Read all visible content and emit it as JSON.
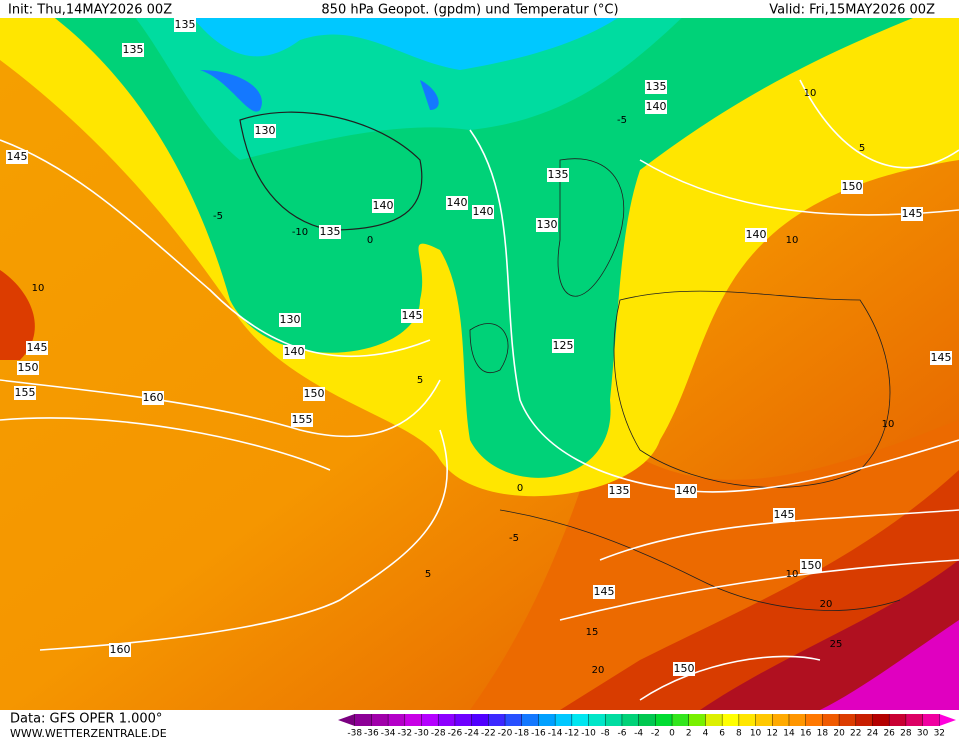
{
  "header": {
    "init": "Init: Thu,14MAY2026 00Z",
    "title": "850 hPa Geopot. (gpdm) und Temperatur (°C)",
    "valid": "Valid: Fri,15MAY2026 00Z"
  },
  "footer": {
    "data": "Data: GFS OPER 1.000°",
    "site": "WWW.WETTERZENTRALE.DE"
  },
  "colorbar": {
    "ticks": [
      -38,
      -36,
      -34,
      -32,
      -30,
      -28,
      -26,
      -24,
      -22,
      -20,
      -18,
      -16,
      -14,
      -12,
      -10,
      -8,
      -6,
      -4,
      -2,
      0,
      2,
      4,
      6,
      8,
      10,
      12,
      14,
      16,
      18,
      20,
      22,
      24,
      26,
      28,
      30,
      32
    ],
    "colors": [
      "#7a0080",
      "#8c0096",
      "#a000aa",
      "#b400c8",
      "#c800e6",
      "#b400ff",
      "#8c00ff",
      "#6e00ff",
      "#5000ff",
      "#3c28ff",
      "#2850ff",
      "#1478ff",
      "#00a0ff",
      "#00c8ff",
      "#00e6f0",
      "#00e6c8",
      "#00dca0",
      "#00d278",
      "#00c850",
      "#00dc32",
      "#32e61e",
      "#78f000",
      "#dcf000",
      "#ffff00",
      "#ffe600",
      "#ffc800",
      "#ffaa00",
      "#ff9600",
      "#ff7800",
      "#f05a00",
      "#dc3c00",
      "#c81e00",
      "#b40000",
      "#c80032",
      "#dc0064",
      "#f000a0",
      "#ff00dc"
    ]
  },
  "geopotential_labels": [
    135,
    135,
    130,
    145,
    140,
    135,
    140,
    140,
    135,
    130,
    140,
    135,
    150,
    145,
    140,
    130,
    140,
    145,
    125,
    145,
    150,
    155,
    160,
    150,
    155,
    135,
    140,
    145,
    150,
    145,
    160,
    150,
    145
  ],
  "temperature_labels": [
    10,
    10,
    10,
    10,
    -5,
    -10,
    -5,
    0,
    0,
    5,
    5,
    -5,
    15,
    20,
    25,
    20,
    10,
    5
  ]
}
